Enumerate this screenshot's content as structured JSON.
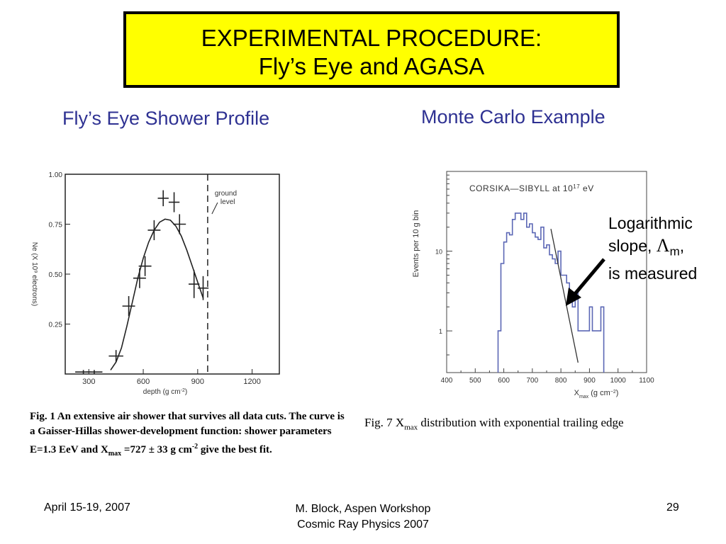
{
  "slide": {
    "title_line1": "EXPERIMENTAL PROCEDURE:",
    "title_line2": "Fly’s Eye and AGASA",
    "left_heading": "Fly’s Eye Shower Profile",
    "right_heading": "Monte Carlo Example",
    "annotation_line1": "Logarithmic",
    "annotation_slope": "slope,",
    "annotation_lambda": "Λ",
    "annotation_sub": "m",
    "annotation_comma": ",",
    "annotation_line3": "is measured",
    "left_caption": {
      "part1": "Fig. 1 An extensive air shower that survives all data cuts.  The curve is a Gaisser-Hillas shower-development function: shower parameters E=1.3 EeV and X",
      "sub": "max",
      "part2": " =727 ± 33 g cm",
      "sup": "-2",
      "part3": " give the best fit."
    },
    "right_caption": {
      "part1": "Fig. 7 X",
      "sub": "max",
      "part2": " distribution with exponential trailing edge"
    },
    "footer_left": "April 15-19, 2007",
    "footer_center_line1": "M. Block, Aspen Workshop",
    "footer_center_line2": "Cosmic Ray Physics 2007",
    "footer_right": "29",
    "colors": {
      "title_bg": "#ffff00",
      "heading": "#2e3192",
      "hist_line": "#5b67b5"
    }
  },
  "chart_data": [
    {
      "type": "scatter",
      "xlabel": "depth (g cm",
      "xlabel_sup": "-2",
      "xlabel_end": ")",
      "ylabel": "Ne (X 10⁹ electrons)",
      "xlim": [
        170,
        1350
      ],
      "ylim": [
        0,
        1.0
      ],
      "xticks": [
        300,
        600,
        900,
        1200
      ],
      "xtick_labels": [
        "300",
        "600",
        "900",
        "1200"
      ],
      "yticks": [
        0.25,
        0.5,
        0.75,
        1.0
      ],
      "ytick_labels": [
        "0.25",
        "0.50",
        "0.75",
        "1.00"
      ],
      "annotation": "ground level",
      "ground_level_depth": 955,
      "points": [
        {
          "x": 270,
          "y": 0.01,
          "xerr": 45,
          "yerr": 0.01
        },
        {
          "x": 330,
          "y": 0.01,
          "xerr": 45,
          "yerr": 0.01
        },
        {
          "x": 450,
          "y": 0.09,
          "xerr": 40,
          "yerr": 0.03
        },
        {
          "x": 520,
          "y": 0.34,
          "xerr": 35,
          "yerr": 0.05
        },
        {
          "x": 580,
          "y": 0.48,
          "xerr": 35,
          "yerr": 0.05
        },
        {
          "x": 610,
          "y": 0.54,
          "xerr": 35,
          "yerr": 0.05
        },
        {
          "x": 660,
          "y": 0.72,
          "xerr": 35,
          "yerr": 0.05
        },
        {
          "x": 710,
          "y": 0.88,
          "xerr": 30,
          "yerr": 0.04
        },
        {
          "x": 770,
          "y": 0.86,
          "xerr": 30,
          "yerr": 0.05
        },
        {
          "x": 800,
          "y": 0.75,
          "xerr": 35,
          "yerr": 0.05
        },
        {
          "x": 880,
          "y": 0.45,
          "xerr": 30,
          "yerr": 0.07
        },
        {
          "x": 930,
          "y": 0.43,
          "xerr": 30,
          "yerr": 0.06
        }
      ],
      "fit_curve": [
        [
          420,
          0.02
        ],
        [
          450,
          0.06
        ],
        [
          480,
          0.13
        ],
        [
          510,
          0.24
        ],
        [
          540,
          0.36
        ],
        [
          570,
          0.48
        ],
        [
          600,
          0.58
        ],
        [
          630,
          0.66
        ],
        [
          660,
          0.72
        ],
        [
          690,
          0.76
        ],
        [
          720,
          0.775
        ],
        [
          750,
          0.77
        ],
        [
          780,
          0.74
        ],
        [
          810,
          0.69
        ],
        [
          840,
          0.62
        ],
        [
          870,
          0.54
        ],
        [
          900,
          0.46
        ],
        [
          930,
          0.38
        ]
      ]
    },
    {
      "type": "histogram",
      "title": "CORSIKA—SIBYLL at 10",
      "title_sup": "17",
      "title_end": " eV",
      "xlabel": "X",
      "xlabel_sub": "max",
      "xlabel_end": " (g cm",
      "xlabel_sup": "−2",
      "xlabel_tail": ")",
      "ylabel": "Events per 10 g bin",
      "xlim": [
        400,
        1100
      ],
      "ylim_log": [
        0.3,
        100
      ],
      "xticks": [
        400,
        500,
        600,
        700,
        800,
        900,
        1000,
        1100
      ],
      "xtick_labels": [
        "400",
        "500",
        "600",
        "700",
        "800",
        "900",
        "1000",
        "1100"
      ],
      "yticks": [
        1,
        10
      ],
      "ytick_labels": [
        "1",
        "10"
      ],
      "bin_width": 10,
      "bins_start": 580,
      "counts": [
        1,
        7,
        13,
        17,
        16,
        25,
        30,
        30,
        25,
        30,
        20,
        22,
        17,
        15,
        14,
        20,
        11,
        12,
        9,
        8,
        7,
        10,
        5,
        5,
        4,
        3,
        2,
        3,
        1,
        1,
        1,
        1,
        2,
        1,
        1,
        1,
        2
      ],
      "fit_line": [
        [
          765,
          19
        ],
        [
          860,
          0.4
        ]
      ]
    }
  ]
}
